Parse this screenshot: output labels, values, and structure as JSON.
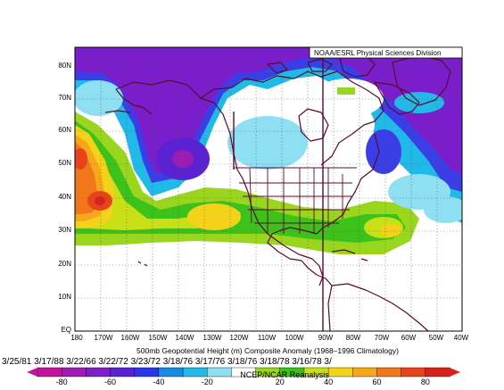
{
  "credit": "NOAA/ESRL Physical Sciences Division",
  "caption_line1": "500mb Geopotential Height (m) Composite Anomaly (1968–1996 Climatology)",
  "caption_line2": "3/25/81 3/17/88 3/22/66 3/22/72 3/23/72 3/18/76 3/17/76 3/18/76 3/18/78 3/16/78 3/",
  "source": "NCEP/NCAR Reanalysis",
  "lat_labels": [
    "80N",
    "70N",
    "60N",
    "50N",
    "40N",
    "30N",
    "20N",
    "10N",
    "EQ"
  ],
  "lon_labels": [
    "180",
    "170W",
    "160W",
    "150W",
    "140W",
    "130W",
    "120W",
    "110W",
    "100W",
    "90W",
    "80W",
    "70W",
    "60W",
    "50W",
    "40W"
  ],
  "colorbar": {
    "tick_labels": [
      "-80",
      "-60",
      "-40",
      "-20",
      "20",
      "40",
      "60",
      "80"
    ],
    "colors": [
      "#c2159b",
      "#9c1cb4",
      "#7d1fc6",
      "#5b22d4",
      "#2a36e6",
      "#178bdf",
      "#20b9e8",
      "#8fdff2",
      "#ffffff",
      "#9bd61f",
      "#3dc21c",
      "#c9e019",
      "#f5d21a",
      "#f6a81a",
      "#f0781b",
      "#e8441c",
      "#d8201c"
    ]
  },
  "colors": {
    "neg_strong": "#7a1ecc",
    "neg_mid": "#3a3ee6",
    "neg_light": "#20b9e8",
    "neg_faint": "#8fdff2",
    "pos_faint": "#9bd61f",
    "pos_light": "#c9e019",
    "pos_mid": "#f5d21a",
    "pos_orange": "#f0781b",
    "pos_red": "#d8201c",
    "land": "#5a0a2e"
  }
}
